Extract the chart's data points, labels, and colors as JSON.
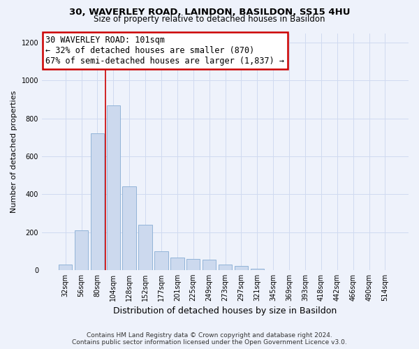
{
  "title1": "30, WAVERLEY ROAD, LAINDON, BASILDON, SS15 4HU",
  "title2": "Size of property relative to detached houses in Basildon",
  "xlabel": "Distribution of detached houses by size in Basildon",
  "ylabel": "Number of detached properties",
  "footer1": "Contains HM Land Registry data © Crown copyright and database right 2024.",
  "footer2": "Contains public sector information licensed under the Open Government Licence v3.0.",
  "annotation_line1": "30 WAVERLEY ROAD: 101sqm",
  "annotation_line2": "← 32% of detached houses are smaller (870)",
  "annotation_line3": "67% of semi-detached houses are larger (1,837) →",
  "bar_color": "#ccd9ee",
  "bar_edge_color": "#92b4d8",
  "vline_color": "#cc0000",
  "vline_x": 2.5,
  "categories": [
    "32sqm",
    "56sqm",
    "80sqm",
    "104sqm",
    "128sqm",
    "152sqm",
    "177sqm",
    "201sqm",
    "225sqm",
    "249sqm",
    "273sqm",
    "297sqm",
    "321sqm",
    "345sqm",
    "369sqm",
    "393sqm",
    "418sqm",
    "442sqm",
    "466sqm",
    "490sqm",
    "514sqm"
  ],
  "values": [
    30,
    210,
    720,
    870,
    440,
    240,
    100,
    65,
    60,
    55,
    30,
    20,
    5,
    0,
    0,
    0,
    0,
    0,
    0,
    0,
    0
  ],
  "ylim": [
    0,
    1250
  ],
  "yticks": [
    0,
    200,
    400,
    600,
    800,
    1000,
    1200
  ],
  "grid_color": "#d0daf0",
  "background_color": "#eef2fb",
  "annotation_box_color": "#ffffff",
  "annotation_box_edge": "#cc0000",
  "title1_fontsize": 9.5,
  "title2_fontsize": 8.5,
  "ylabel_fontsize": 8.0,
  "xlabel_fontsize": 9.0,
  "tick_fontsize": 7.0,
  "annot_fontsize": 8.5,
  "footer_fontsize": 6.5
}
